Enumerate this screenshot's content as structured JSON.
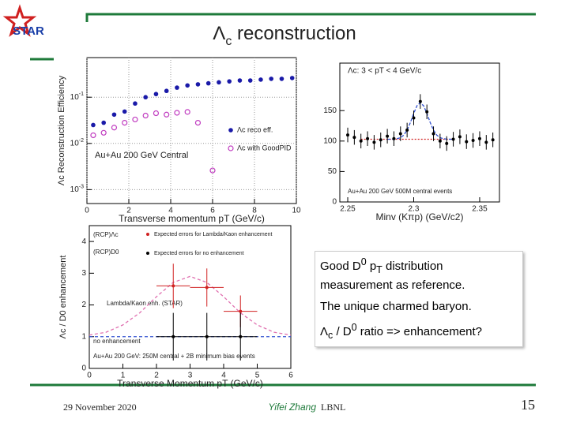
{
  "header": {
    "logo": "STAR",
    "title": [
      "Λ",
      {
        "sub": "c"
      },
      " reconstruction"
    ]
  },
  "figures": [
    {
      "type": "scatter",
      "log": true,
      "grid": true,
      "xlabel": "Transverse momentum pT (GeV/c)",
      "ylabel": "Λc Reconstruction Efficiency",
      "xlim": [
        0,
        10
      ],
      "xticks": [
        0,
        2,
        4,
        6,
        8,
        10
      ],
      "ylim": [
        0.0005,
        0.72
      ],
      "yticks": [
        {
          "value": 0.001,
          "label": "10",
          "exponent": "-3"
        },
        {
          "value": 0.01,
          "label": "10",
          "exponent": "-2"
        },
        {
          "value": 0.1,
          "label": "10",
          "exponent": "-1"
        }
      ],
      "annotations": [
        "Au+Au 200 GeV Central"
      ],
      "series": [
        {
          "name": "Λc reco eff.",
          "color": "#1a1aa8",
          "marker": "filled",
          "x": [
            0.3,
            0.8,
            1.3,
            1.8,
            2.3,
            2.8,
            3.3,
            3.8,
            4.3,
            4.8,
            5.3,
            5.8,
            6.3,
            6.8,
            7.3,
            7.8,
            8.3,
            8.8,
            9.3,
            9.8
          ],
          "values": [
            0.025,
            0.028,
            0.042,
            0.049,
            0.073,
            0.1,
            0.117,
            0.137,
            0.161,
            0.18,
            0.19,
            0.2,
            0.21,
            0.22,
            0.23,
            0.23,
            0.24,
            0.25,
            0.25,
            0.26
          ]
        },
        {
          "name": "Λc with GoodPID",
          "color": "#c03cc0",
          "marker": "open",
          "x": [
            0.3,
            0.8,
            1.3,
            1.8,
            2.3,
            2.8,
            3.3,
            3.8,
            4.3,
            4.8,
            5.3,
            6.0
          ],
          "values": [
            0.015,
            0.017,
            0.022,
            0.028,
            0.033,
            0.04,
            0.045,
            0.042,
            0.046,
            0.048,
            0.028,
            0.0026
          ]
        }
      ]
    },
    {
      "type": "scatter",
      "xlabel": "Minv (Kπp) (GeV/c2)",
      "xlim": [
        2.244,
        2.365
      ],
      "xticks": [
        2.25,
        2.3,
        2.35
      ],
      "ylim": [
        0,
        228
      ],
      "yticks": [
        0,
        50,
        100,
        150
      ],
      "annotations": [
        "Λc: 3 < pT < 4 GeV/c",
        "Au+Au 200 GeV 500M central events"
      ],
      "series": [
        {
          "color": "#000000",
          "marker": "dot",
          "error": 12,
          "x": [
            2.25,
            2.255,
            2.26,
            2.265,
            2.27,
            2.275,
            2.28,
            2.285,
            2.29,
            2.295,
            2.3,
            2.305,
            2.31,
            2.315,
            2.32,
            2.325,
            2.33,
            2.335,
            2.34,
            2.345,
            2.35,
            2.355,
            2.36
          ],
          "values": [
            110,
            106,
            100,
            104,
            98,
            102,
            108,
            104,
            112,
            118,
            138,
            165,
            148,
            112,
            100,
            96,
            103,
            107,
            99,
            101,
            104,
            98,
            102
          ]
        }
      ],
      "curves": [
        {
          "color": "#d02020",
          "dash": "2,2",
          "x": [
            2.26,
            2.33
          ],
          "values": [
            103,
            103
          ]
        },
        {
          "color": "#3050d0",
          "dash": "4,2",
          "x": [
            2.28,
            2.2825,
            2.285,
            2.2875,
            2.29,
            2.2925,
            2.295,
            2.2975,
            2.3,
            2.3025,
            2.305,
            2.3075,
            2.31,
            2.3125,
            2.315,
            2.3175,
            2.32,
            2.3225,
            2.325,
            2.3275,
            2.33
          ],
          "values": [
            103,
            103,
            103.2,
            103.9,
            105.6,
            109.8,
            118,
            130.5,
            145.4,
            158,
            163,
            158,
            145.4,
            130.5,
            118,
            109.8,
            105.6,
            103.9,
            103.2,
            103,
            103
          ]
        }
      ]
    },
    {
      "type": "scatter",
      "xlabel": "Transverse Momentum pT (GeV/c)",
      "ylabel": "Λc / D0 enhancement",
      "xlim": [
        0,
        6
      ],
      "xticks": [
        0,
        1,
        2,
        3,
        4,
        5,
        6
      ],
      "ylim": [
        0,
        4.5
      ],
      "yticks": [
        0,
        1,
        2,
        3,
        4
      ],
      "annotations": [
        "(RCP)Λc",
        "(RCP)D0",
        "Lambda/Kaon enh. (STAR)",
        "no enhancement",
        "Au+Au 200 GeV: 250M central + 2B minimum bias events"
      ],
      "series": [
        {
          "name": "Expected errors for Lambda/Kaon enhancement",
          "color": "#d02020",
          "marker": "dot",
          "x": [
            2.5,
            3.5,
            4.5
          ],
          "values": [
            2.6,
            2.55,
            1.8
          ],
          "errors": [
            0.7,
            0.6,
            0.5
          ],
          "xerr": 0.5
        },
        {
          "name": "Expected errors for no enhancement",
          "color": "#000000",
          "marker": "dot",
          "x": [
            2.5,
            3.5,
            4.5
          ],
          "values": [
            1,
            1,
            1
          ],
          "errors": [
            0.75,
            0.75,
            0.75
          ],
          "xerr": 0.5
        }
      ],
      "curves": [
        {
          "color": "#e070b0",
          "dash": "4,3",
          "x": [
            0,
            0.5,
            1,
            1.5,
            2,
            2.5,
            3,
            3.5,
            4,
            4.5,
            5,
            5.5,
            6
          ],
          "values": [
            1.05,
            1.14,
            1.37,
            1.75,
            2.26,
            2.71,
            2.9,
            2.71,
            2.26,
            1.75,
            1.37,
            1.14,
            1.05
          ]
        },
        {
          "color": "#3050d0",
          "dash": "4,3",
          "x": [
            0,
            6
          ],
          "values": [
            1,
            1
          ]
        }
      ]
    }
  ],
  "textbox": [
    [
      "Good D",
      {
        "sup": "0"
      },
      " p",
      {
        "sub": "T"
      },
      " distribution measurement as reference."
    ],
    [
      "The unique charmed baryon."
    ],
    [
      "Λ",
      {
        "sub": "c"
      },
      " / D",
      {
        "sup": "0"
      },
      " ratio => enhancement?"
    ]
  ],
  "footer": {
    "date": "29 November 2020",
    "author": "Yifei Zhang",
    "institution": "LBNL",
    "page": 15
  }
}
